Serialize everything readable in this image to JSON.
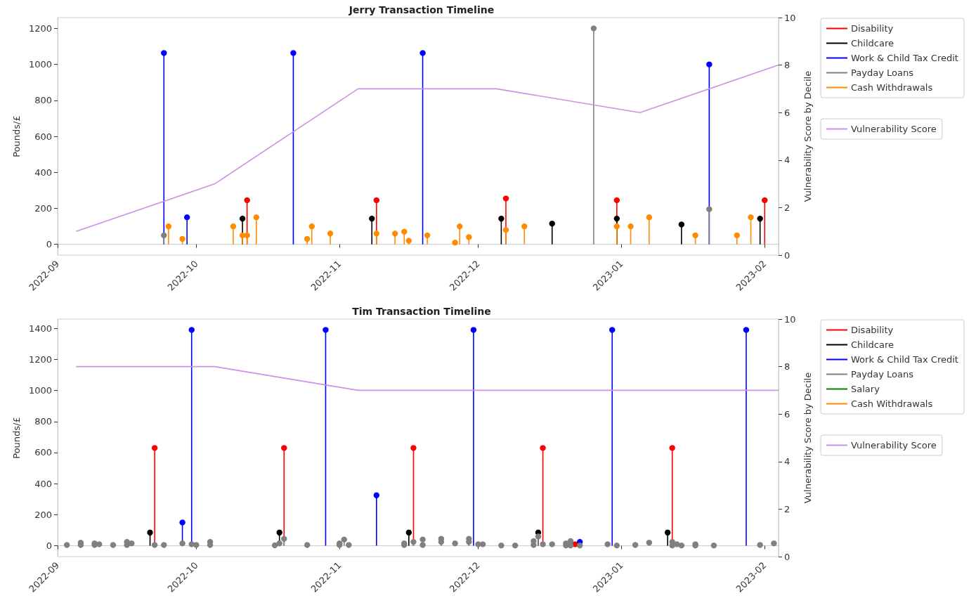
{
  "chart_data": [
    {
      "type": "lollipop",
      "title": "Jerry Transaction Timeline",
      "ylabel": "Pounds/£",
      "y2label": "Vulnerability Score by Decile",
      "legend": "right",
      "marker": "circle",
      "xlim": [
        "2022-09-01",
        "2023-02-04"
      ],
      "xticks": [
        "2022-09",
        "2022-10",
        "2022-11",
        "2022-12",
        "2023-01",
        "2023-02"
      ],
      "ylim": [
        -60,
        1260
      ],
      "yticks": [
        0,
        200,
        400,
        600,
        800,
        1000,
        1200
      ],
      "y2lim": [
        0,
        10
      ],
      "y2ticks": [
        0,
        2,
        4,
        6,
        8,
        10
      ],
      "series": [
        {
          "name": "Disability",
          "color": "#ff0000",
          "x": [
            "2022-10-12",
            "2022-11-09",
            "2022-12-07",
            "2022-12-31",
            "2023-02-01"
          ],
          "values": [
            245,
            245,
            255,
            245,
            245
          ]
        },
        {
          "name": "Childcare",
          "color": "#000000",
          "x": [
            "2022-10-11",
            "2022-11-08",
            "2022-12-06",
            "2022-12-17",
            "2022-12-31",
            "2023-01-14",
            "2023-01-31"
          ],
          "values": [
            143,
            143,
            143,
            115,
            143,
            110,
            143
          ]
        },
        {
          "name": "Work & Child Tax Credit",
          "color": "#0000ff",
          "x": [
            "2022-09-24",
            "2022-09-29",
            "2022-10-22",
            "2022-11-19",
            "2023-01-20"
          ],
          "values": [
            1063,
            150,
            1063,
            1063,
            1000
          ]
        },
        {
          "name": "Payday Loans",
          "color": "#808080",
          "x": [
            "2022-09-24",
            "2022-12-26",
            "2023-01-20"
          ],
          "values": [
            50,
            1200,
            195
          ]
        },
        {
          "name": "Cash Withdrawals",
          "color": "#ff8c00",
          "x": [
            "2022-09-25",
            "2022-09-28",
            "2022-10-09",
            "2022-10-11",
            "2022-10-12",
            "2022-10-14",
            "2022-10-25",
            "2022-10-26",
            "2022-10-30",
            "2022-11-09",
            "2022-11-13",
            "2022-11-15",
            "2022-11-16",
            "2022-11-20",
            "2022-11-26",
            "2022-11-27",
            "2022-11-29",
            "2022-12-07",
            "2022-12-11",
            "2022-12-31",
            "2023-01-03",
            "2023-01-07",
            "2023-01-17",
            "2023-01-26",
            "2023-01-29"
          ],
          "values": [
            100,
            30,
            100,
            50,
            50,
            150,
            30,
            100,
            60,
            60,
            60,
            70,
            20,
            50,
            10,
            100,
            40,
            80,
            100,
            100,
            100,
            150,
            50,
            50,
            150
          ]
        },
        {
          "type": "line",
          "name": "Vulnerability Score",
          "color": "#cf8fe5",
          "axis": "y2",
          "marker": "none",
          "x": [
            "2022-09-05",
            "2022-10-05",
            "2022-11-05",
            "2022-12-05",
            "2023-01-05",
            "2023-02-04"
          ],
          "values": [
            1,
            3,
            7,
            7,
            6,
            8
          ]
        }
      ]
    },
    {
      "type": "lollipop",
      "title": "Tim Transaction Timeline",
      "ylabel": "Pounds/£",
      "y2label": "Vulnerability Score by Decile",
      "legend": "right",
      "marker": "circle",
      "xlim": [
        "2022-09-01",
        "2023-02-04"
      ],
      "xticks": [
        "2022-09",
        "2022-10",
        "2022-11",
        "2022-12",
        "2023-01",
        "2023-02"
      ],
      "ylim": [
        -70,
        1460
      ],
      "yticks": [
        0,
        200,
        400,
        600,
        800,
        1000,
        1200,
        1400
      ],
      "y2lim": [
        0,
        10
      ],
      "y2ticks": [
        0,
        2,
        4,
        6,
        8,
        10
      ],
      "series": [
        {
          "name": "Disability",
          "color": "#ff0000",
          "x": [
            "2022-09-22",
            "2022-10-20",
            "2022-11-17",
            "2022-12-15",
            "2022-12-22",
            "2023-01-12"
          ],
          "values": [
            630,
            630,
            630,
            630,
            10,
            630
          ]
        },
        {
          "name": "Childcare",
          "color": "#000000",
          "x": [
            "2022-09-21",
            "2022-10-19",
            "2022-11-16",
            "2022-12-14",
            "2023-01-11"
          ],
          "values": [
            85,
            85,
            85,
            85,
            85
          ]
        },
        {
          "name": "Work & Child Tax Credit",
          "color": "#0000ff",
          "x": [
            "2022-09-28",
            "2022-09-30",
            "2022-10-29",
            "2022-11-09",
            "2022-11-30",
            "2022-12-23",
            "2022-12-30",
            "2023-01-28"
          ],
          "values": [
            150,
            1390,
            1390,
            325,
            1390,
            25,
            1390,
            1390
          ]
        },
        {
          "name": "Payday Loans",
          "color": "#808080",
          "x": [
            "2022-09-03",
            "2022-09-06",
            "2022-09-06",
            "2022-09-09",
            "2022-09-09",
            "2022-09-10",
            "2022-09-13",
            "2022-09-16",
            "2022-09-16",
            "2022-09-17",
            "2022-09-22",
            "2022-09-24",
            "2022-09-28",
            "2022-09-30",
            "2022-10-01",
            "2022-10-04",
            "2022-10-04",
            "2022-10-18",
            "2022-10-19",
            "2022-10-20",
            "2022-10-25",
            "2022-11-01",
            "2022-11-01",
            "2022-11-02",
            "2022-11-03",
            "2022-11-15",
            "2022-11-15",
            "2022-11-17",
            "2022-11-19",
            "2022-11-19",
            "2022-11-23",
            "2022-11-23",
            "2022-11-26",
            "2022-11-29",
            "2022-11-29",
            "2022-12-01",
            "2022-12-02",
            "2022-12-06",
            "2022-12-09",
            "2022-12-13",
            "2022-12-13",
            "2022-12-14",
            "2022-12-15",
            "2022-12-17",
            "2022-12-20",
            "2022-12-20",
            "2022-12-21",
            "2022-12-21",
            "2022-12-23",
            "2022-12-29",
            "2022-12-31",
            "2023-01-04",
            "2023-01-07",
            "2023-01-12",
            "2023-01-12",
            "2023-01-13",
            "2023-01-14",
            "2023-01-17",
            "2023-01-17",
            "2023-01-21",
            "2023-01-31",
            "2023-02-03"
          ],
          "values": [
            5,
            20,
            5,
            5,
            15,
            10,
            5,
            25,
            5,
            15,
            5,
            5,
            15,
            10,
            5,
            25,
            5,
            3,
            15,
            45,
            5,
            15,
            5,
            40,
            5,
            15,
            5,
            25,
            40,
            5,
            45,
            25,
            15,
            45,
            25,
            10,
            10,
            2,
            2,
            30,
            5,
            60,
            10,
            10,
            15,
            2,
            30,
            2,
            2,
            10,
            2,
            5,
            20,
            25,
            2,
            10,
            2,
            10,
            2,
            2,
            5,
            15
          ]
        },
        {
          "name": "Salary",
          "color": "#008000"
        },
        {
          "name": "Cash Withdrawals",
          "color": "#ff8c00"
        },
        {
          "type": "line",
          "name": "Vulnerability Score",
          "color": "#cf8fe5",
          "axis": "y2",
          "marker": "none",
          "x": [
            "2022-09-05",
            "2022-10-05",
            "2022-11-05",
            "2022-12-05",
            "2023-01-05",
            "2023-02-04"
          ],
          "values": [
            8,
            8,
            7,
            7,
            7,
            7
          ]
        }
      ]
    }
  ]
}
